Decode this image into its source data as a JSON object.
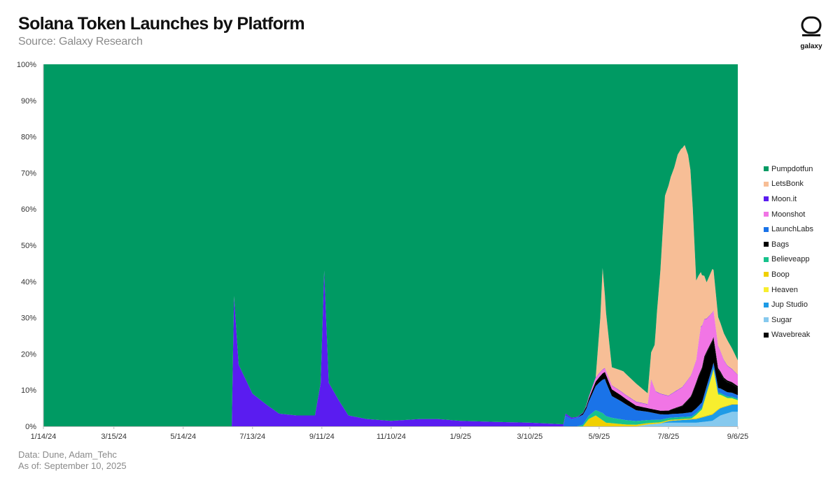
{
  "header": {
    "title": "Solana Token Launches by Platform",
    "subtitle": "Source: Galaxy Research"
  },
  "logo": {
    "wordmark": "galaxy",
    "icon": "galaxy-logo-icon"
  },
  "footer": {
    "data_source": "Data: Dune, Adam_Tehc",
    "as_of": "As of: September 10, 2025"
  },
  "chart_data": {
    "type": "area",
    "stacked": true,
    "normalized": true,
    "x_axis": {
      "start": "1/14/24",
      "end": "9/6/25",
      "tick_labels": [
        "1/14/24",
        "3/15/24",
        "5/14/24",
        "7/13/24",
        "9/11/24",
        "11/10/24",
        "1/9/25",
        "3/10/25",
        "5/9/25",
        "7/8/25",
        "9/6/25"
      ]
    },
    "y_axis": {
      "range": [
        0,
        100
      ],
      "unit": "%",
      "tick_labels": [
        "0%",
        "10%",
        "20%",
        "30%",
        "40%",
        "50%",
        "60%",
        "70%",
        "80%",
        "90%",
        "100%"
      ]
    },
    "legend_position": "right",
    "grid": false,
    "series_order_bottom_to_top": [
      "Sugar",
      "Jup Studio",
      "Boop",
      "Heaven",
      "Believeapp",
      "LaunchLabs",
      "Bags",
      "Wavebreak",
      "Moonshot",
      "Moon.it",
      "LetsBonk",
      "Pumpdotfun"
    ],
    "series": [
      {
        "name": "Pumpdotfun",
        "color": "#009a63",
        "note": "remainder to 100%"
      },
      {
        "name": "LetsBonk",
        "color": "#f7be96",
        "points": [
          [
            "4/26/25",
            0
          ],
          [
            "5/6/25",
            0
          ],
          [
            "5/10/25",
            15
          ],
          [
            "5/12/25",
            28
          ],
          [
            "5/15/25",
            16
          ],
          [
            "5/20/25",
            5
          ],
          [
            "5/30/25",
            6
          ],
          [
            "6/10/25",
            5
          ],
          [
            "6/20/25",
            3
          ],
          [
            "6/26/25",
            12
          ],
          [
            "6/28/25",
            22
          ],
          [
            "7/1/25",
            34
          ],
          [
            "7/3/25",
            45
          ],
          [
            "7/5/25",
            55
          ],
          [
            "7/8/25",
            58
          ],
          [
            "7/10/25",
            60
          ],
          [
            "7/13/25",
            62
          ],
          [
            "7/16/25",
            65
          ],
          [
            "7/19/25",
            66
          ],
          [
            "7/22/25",
            66
          ],
          [
            "7/25/25",
            62
          ],
          [
            "7/27/25",
            57
          ],
          [
            "7/29/25",
            45
          ],
          [
            "8/1/25",
            22
          ],
          [
            "8/5/25",
            15
          ],
          [
            "8/10/25",
            10
          ],
          [
            "8/15/25",
            12
          ],
          [
            "8/20/25",
            8
          ],
          [
            "8/28/25",
            7
          ],
          [
            "9/6/25",
            4
          ]
        ]
      },
      {
        "name": "Moon.it",
        "color": "#5a1cf0",
        "points": [
          [
            "1/14/24",
            0
          ],
          [
            "6/25/24",
            0
          ],
          [
            "6/27/24",
            36
          ],
          [
            "7/1/24",
            17
          ],
          [
            "7/13/24",
            9
          ],
          [
            "7/25/24",
            6
          ],
          [
            "8/5/24",
            3.5
          ],
          [
            "8/20/24",
            3
          ],
          [
            "9/5/24",
            3
          ],
          [
            "9/10/24",
            12
          ],
          [
            "9/13/24",
            43
          ],
          [
            "9/17/24",
            12
          ],
          [
            "9/26/24",
            7
          ],
          [
            "10/4/24",
            3
          ],
          [
            "10/20/24",
            2
          ],
          [
            "11/10/24",
            1.5
          ],
          [
            "12/5/24",
            2
          ],
          [
            "12/20/24",
            2
          ],
          [
            "1/9/25",
            1.5
          ],
          [
            "2/10/25",
            1.2
          ],
          [
            "3/10/25",
            1
          ],
          [
            "4/12/25",
            0.5
          ],
          [
            "4/20/25",
            0.2
          ],
          [
            "5/1/25",
            0.1
          ],
          [
            "9/6/25",
            0.1
          ]
        ]
      },
      {
        "name": "Moonshot",
        "color": "#f175e5",
        "points": [
          [
            "4/26/25",
            0
          ],
          [
            "5/5/25",
            1
          ],
          [
            "5/12/25",
            1
          ],
          [
            "6/1/25",
            1
          ],
          [
            "6/20/25",
            1
          ],
          [
            "6/23/25",
            8
          ],
          [
            "6/27/25",
            5
          ],
          [
            "7/8/25",
            4
          ],
          [
            "7/20/25",
            5
          ],
          [
            "8/1/25",
            6
          ],
          [
            "8/5/25",
            12
          ],
          [
            "8/10/25",
            9
          ],
          [
            "8/20/25",
            6
          ],
          [
            "8/28/25",
            4
          ],
          [
            "9/6/25",
            3
          ]
        ]
      },
      {
        "name": "LaunchLabs",
        "color": "#1a73e8",
        "points": [
          [
            "4/8/25",
            0
          ],
          [
            "4/10/25",
            3
          ],
          [
            "4/15/25",
            2
          ],
          [
            "4/28/25",
            3
          ],
          [
            "5/9/25",
            8
          ],
          [
            "5/14/25",
            10
          ],
          [
            "5/20/25",
            6
          ],
          [
            "5/28/25",
            5
          ],
          [
            "6/10/25",
            3
          ],
          [
            "6/24/25",
            2
          ],
          [
            "7/8/25",
            1
          ],
          [
            "7/20/25",
            1
          ],
          [
            "8/10/25",
            1.5
          ],
          [
            "9/6/25",
            1
          ]
        ]
      },
      {
        "name": "Bags",
        "color": "#000000",
        "points": [
          [
            "4/20/25",
            0
          ],
          [
            "5/9/25",
            1.5
          ],
          [
            "5/15/25",
            2
          ],
          [
            "6/1/25",
            1.5
          ],
          [
            "6/20/25",
            1
          ],
          [
            "7/8/25",
            1
          ],
          [
            "7/20/25",
            2
          ],
          [
            "7/27/25",
            4
          ],
          [
            "8/3/25",
            8
          ],
          [
            "8/8/25",
            10
          ],
          [
            "8/15/25",
            7
          ],
          [
            "8/25/25",
            3
          ],
          [
            "9/6/25",
            2
          ]
        ]
      },
      {
        "name": "Believeapp",
        "color": "#17c28c",
        "points": [
          [
            "4/20/25",
            0
          ],
          [
            "5/1/25",
            1
          ],
          [
            "5/12/25",
            2
          ],
          [
            "5/20/25",
            1.5
          ],
          [
            "6/10/25",
            1
          ],
          [
            "7/8/25",
            0.6
          ],
          [
            "9/6/25",
            0.4
          ]
        ]
      },
      {
        "name": "Boop",
        "color": "#f0d000",
        "points": [
          [
            "4/25/25",
            0
          ],
          [
            "4/30/25",
            2
          ],
          [
            "5/6/25",
            3
          ],
          [
            "5/15/25",
            1
          ],
          [
            "6/1/25",
            0.5
          ],
          [
            "7/1/25",
            0.3
          ],
          [
            "9/6/25",
            0.2
          ]
        ]
      },
      {
        "name": "Heaven",
        "color": "#f7ee2e",
        "points": [
          [
            "7/28/25",
            0
          ],
          [
            "8/6/25",
            2
          ],
          [
            "8/12/25",
            8
          ],
          [
            "8/16/25",
            12
          ],
          [
            "8/20/25",
            4
          ],
          [
            "8/28/25",
            2
          ],
          [
            "9/6/25",
            1
          ]
        ]
      },
      {
        "name": "Jup Studio",
        "color": "#1e9be6",
        "points": [
          [
            "7/1/25",
            0
          ],
          [
            "7/10/25",
            0.5
          ],
          [
            "8/1/25",
            1
          ],
          [
            "8/20/25",
            2
          ],
          [
            "9/6/25",
            2
          ]
        ]
      },
      {
        "name": "Sugar",
        "color": "#86c9ee",
        "points": [
          [
            "6/10/25",
            0
          ],
          [
            "6/20/25",
            0.5
          ],
          [
            "7/8/25",
            1
          ],
          [
            "8/1/25",
            1
          ],
          [
            "8/15/25",
            1.5
          ],
          [
            "8/22/25",
            3
          ],
          [
            "9/1/25",
            4
          ],
          [
            "9/6/25",
            4
          ]
        ]
      },
      {
        "name": "Wavebreak",
        "color": "#050505",
        "points": [
          [
            "7/1/25",
            0
          ],
          [
            "7/20/25",
            0.2
          ],
          [
            "8/10/25",
            0.5
          ],
          [
            "9/6/25",
            0.5
          ]
        ]
      }
    ]
  }
}
